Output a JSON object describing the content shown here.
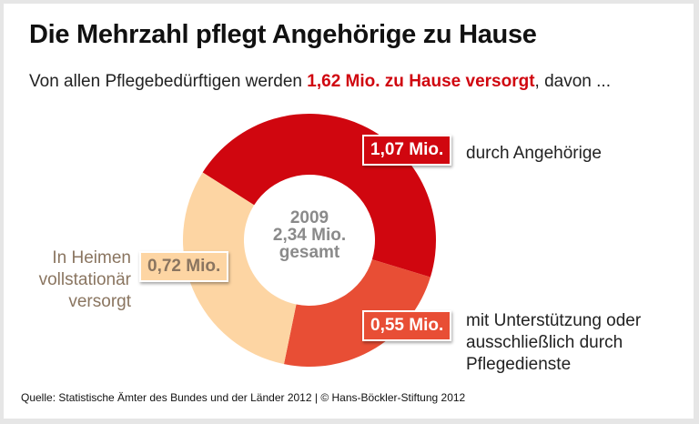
{
  "title": "Die Mehrzahl pflegt Angehörige zu Hause",
  "subtitle": {
    "before": "Von allen Pflegebedürftigen werden ",
    "highlight": "1,62 Mio. zu Hause versorgt",
    "after": ", davon ..."
  },
  "center": {
    "year": "2009",
    "total": "2,34 Mio.",
    "word": "gesamt"
  },
  "source": "Quelle: Statistische Ämter des Bundes und der Länder 2012 | © Hans-Böckler-Stiftung 2012",
  "chart_data": {
    "type": "pie",
    "style": "donut",
    "unit": "Mio.",
    "slices": [
      {
        "label": "durch Angehörige",
        "value": 1.07,
        "value_label": "1,07 Mio.",
        "color": "#d0060f"
      },
      {
        "label": "mit Unterstützung oder ausschließlich durch Pflegedienste",
        "value": 0.55,
        "value_label": "0,55 Mio.",
        "color": "#e84e35"
      },
      {
        "label": "In Heimen vollstationär versorgt",
        "value": 0.72,
        "value_label": "0,72 Mio.",
        "color": "#fdd5a3"
      }
    ],
    "total": 2.34
  }
}
